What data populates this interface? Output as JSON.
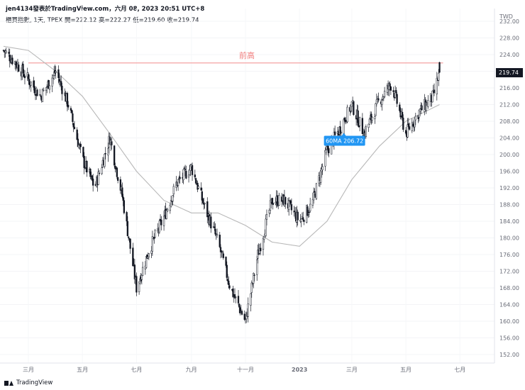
{
  "header": {
    "publisher": "jen4134發表於TradingView.com，六月 08, 2023 20:51 UTC+8"
  },
  "legend": {
    "symbol": "櫃買指數, 1天, TPEX",
    "open_label": "開=",
    "open": "222.12",
    "high_label": "高=",
    "high": "222.27",
    "low_label": "低=",
    "low": "219.60",
    "close_label": "收=",
    "close": "219.74"
  },
  "footer": {
    "brand": "TradingView"
  },
  "chart_data": {
    "type": "candlestick",
    "currency": "TWD",
    "y_ticks": [
      "152.00",
      "156.00",
      "160.00",
      "164.00",
      "168.00",
      "172.00",
      "176.00",
      "180.00",
      "184.00",
      "188.00",
      "192.00",
      "196.00",
      "200.00",
      "204.00",
      "208.00",
      "212.00",
      "216.00",
      "220.00",
      "224.00",
      "228.00",
      "232.00"
    ],
    "ylim": [
      150,
      233
    ],
    "x_ticks": [
      {
        "label": "三月",
        "date": "2022-03"
      },
      {
        "label": "五月",
        "date": "2022-05"
      },
      {
        "label": "七月",
        "date": "2022-07"
      },
      {
        "label": "九月",
        "date": "2022-09"
      },
      {
        "label": "十一月",
        "date": "2022-11"
      },
      {
        "label": "2023",
        "date": "2023-01"
      },
      {
        "label": "三月",
        "date": "2023-03"
      },
      {
        "label": "五月",
        "date": "2023-05"
      },
      {
        "label": "七月",
        "date": "2023-07"
      }
    ],
    "price_path": [
      [
        "2022-02-01",
        225
      ],
      [
        "2022-02-15",
        222
      ],
      [
        "2022-03-01",
        218
      ],
      [
        "2022-03-15",
        214
      ],
      [
        "2022-04-01",
        220
      ],
      [
        "2022-04-15",
        212
      ],
      [
        "2022-05-01",
        199
      ],
      [
        "2022-05-15",
        192
      ],
      [
        "2022-06-01",
        204
      ],
      [
        "2022-06-15",
        190
      ],
      [
        "2022-07-01",
        168
      ],
      [
        "2022-07-15",
        177
      ],
      [
        "2022-08-01",
        185
      ],
      [
        "2022-08-15",
        193
      ],
      [
        "2022-09-01",
        197
      ],
      [
        "2022-09-15",
        188
      ],
      [
        "2022-10-01",
        179
      ],
      [
        "2022-10-15",
        168
      ],
      [
        "2022-11-01",
        160
      ],
      [
        "2022-11-15",
        176
      ],
      [
        "2022-12-01",
        189
      ],
      [
        "2022-12-15",
        189
      ],
      [
        "2023-01-01",
        184
      ],
      [
        "2023-01-15",
        188
      ],
      [
        "2023-02-01",
        201
      ],
      [
        "2023-02-15",
        206
      ],
      [
        "2023-03-01",
        212
      ],
      [
        "2023-03-15",
        205
      ],
      [
        "2023-04-01",
        213
      ],
      [
        "2023-04-15",
        217
      ],
      [
        "2023-05-01",
        205
      ],
      [
        "2023-05-15",
        210
      ],
      [
        "2023-06-01",
        214
      ],
      [
        "2023-06-08",
        219.74
      ]
    ],
    "ma": {
      "label": "60MA",
      "value": "206.72",
      "path": [
        [
          "2022-02-01",
          226
        ],
        [
          "2022-03-01",
          225
        ],
        [
          "2022-04-01",
          220
        ],
        [
          "2022-05-01",
          214
        ],
        [
          "2022-06-01",
          205
        ],
        [
          "2022-07-01",
          196
        ],
        [
          "2022-08-01",
          189
        ],
        [
          "2022-09-01",
          186
        ],
        [
          "2022-10-01",
          186
        ],
        [
          "2022-11-01",
          183
        ],
        [
          "2022-12-01",
          179
        ],
        [
          "2023-01-01",
          178
        ],
        [
          "2023-02-01",
          184
        ],
        [
          "2023-03-01",
          194
        ],
        [
          "2023-04-01",
          202
        ],
        [
          "2023-05-01",
          208
        ],
        [
          "2023-06-08",
          212
        ]
      ],
      "label_date": "2023-02-20"
    },
    "horizontal_line": {
      "price": 222,
      "label": "前高",
      "color": "#f5a3a3"
    },
    "last_price": "219.74",
    "colors": {
      "candle": "#131722",
      "ma": "#b8b8b8",
      "label_box": "#2196f3",
      "last_price_bg": "#131722"
    }
  }
}
